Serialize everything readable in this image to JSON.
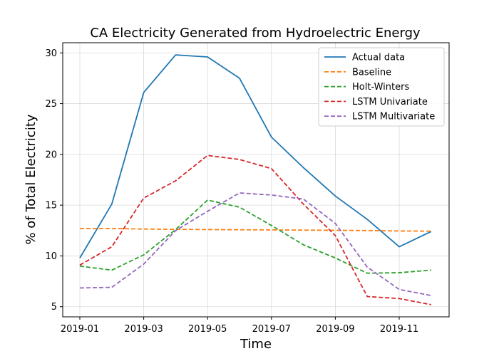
{
  "chart_data": {
    "type": "line",
    "title": "CA Electricity Generated from Hydroelectric Energy",
    "xlabel": "Time",
    "ylabel": "% of Total Electricity",
    "x": [
      "2019-01",
      "2019-02",
      "2019-03",
      "2019-04",
      "2019-05",
      "2019-06",
      "2019-07",
      "2019-08",
      "2019-09",
      "2019-10",
      "2019-11",
      "2019-12"
    ],
    "x_ticks": [
      "2019-01",
      "2019-03",
      "2019-05",
      "2019-07",
      "2019-09",
      "2019-11"
    ],
    "y_ticks": [
      5,
      10,
      15,
      20,
      25,
      30
    ],
    "ylim": [
      4,
      31
    ],
    "grid": true,
    "legend_position": "top-right",
    "series": [
      {
        "name": "Actual data",
        "style": "solid",
        "color": "#1f77b4",
        "values": [
          9.8,
          15.1,
          26.1,
          29.8,
          29.6,
          27.5,
          21.7,
          18.7,
          15.9,
          13.6,
          10.9,
          12.4
        ]
      },
      {
        "name": "Baseline",
        "style": "dashed",
        "color": "#ff7f0e",
        "values": [
          12.7,
          12.7,
          12.65,
          12.62,
          12.6,
          12.58,
          12.56,
          12.54,
          12.52,
          12.5,
          12.46,
          12.44
        ]
      },
      {
        "name": "Holt-Winters",
        "style": "dashed",
        "color": "#2ca02c",
        "values": [
          9.0,
          8.6,
          10.1,
          12.6,
          15.5,
          14.8,
          13.0,
          11.1,
          9.8,
          8.3,
          8.35,
          8.6
        ]
      },
      {
        "name": "LSTM Univariate",
        "style": "dashed",
        "color": "#d62728",
        "values": [
          9.1,
          10.9,
          15.7,
          17.4,
          19.9,
          19.5,
          18.6,
          15.1,
          12.0,
          6.0,
          5.8,
          5.2
        ]
      },
      {
        "name": "LSTM Multivariate",
        "style": "dashed",
        "color": "#9467bd",
        "values": [
          6.85,
          6.9,
          9.2,
          12.5,
          14.4,
          16.2,
          16.0,
          15.6,
          13.2,
          8.9,
          6.7,
          6.1
        ]
      }
    ]
  }
}
